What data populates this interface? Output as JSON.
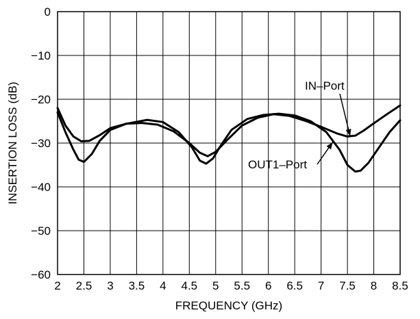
{
  "chart_data": {
    "type": "line",
    "xlabel": "FREQUENCY (GHz)",
    "ylabel": "INSERTION LOSS (dB)",
    "xlim": [
      2,
      8.5
    ],
    "ylim": [
      -60,
      0
    ],
    "xticks": [
      2,
      2.5,
      3,
      3.5,
      4,
      4.5,
      5,
      5.5,
      6,
      6.5,
      7,
      7.5,
      8,
      8.5
    ],
    "xtick_labels": [
      "2",
      "2.5",
      "3",
      "3.5",
      "4",
      "4.5",
      "5",
      "5.5",
      "6",
      "6.5",
      "7",
      "7.5",
      "8",
      "8.5"
    ],
    "yticks": [
      0,
      -10,
      -20,
      -30,
      -40,
      -50,
      -60
    ],
    "ytick_labels": [
      "0",
      "−10",
      "−20",
      "−30",
      "−40",
      "−50",
      "−60"
    ],
    "grid": true,
    "series": [
      {
        "name": "IN–Port",
        "x": [
          2.0,
          2.15,
          2.3,
          2.45,
          2.6,
          2.8,
          3.0,
          3.3,
          3.6,
          3.9,
          4.2,
          4.5,
          4.7,
          4.85,
          5.0,
          5.2,
          5.5,
          5.8,
          6.1,
          6.4,
          6.7,
          7.0,
          7.3,
          7.5,
          7.65,
          7.8,
          8.0,
          8.25,
          8.5
        ],
        "y": [
          -22,
          -26,
          -28.5,
          -29.6,
          -29.5,
          -28.2,
          -26.6,
          -25.6,
          -25.4,
          -25.8,
          -27.3,
          -30,
          -32.2,
          -33,
          -32,
          -29.5,
          -26,
          -24.2,
          -23.4,
          -23.8,
          -24.9,
          -26.3,
          -27.8,
          -28.5,
          -28.3,
          -27.2,
          -25.5,
          -23.4,
          -21.4
        ]
      },
      {
        "name": "OUT1–Port",
        "x": [
          2.0,
          2.15,
          2.3,
          2.4,
          2.5,
          2.65,
          2.8,
          3.0,
          3.3,
          3.7,
          4.0,
          4.3,
          4.55,
          4.7,
          4.82,
          4.95,
          5.1,
          5.3,
          5.6,
          5.9,
          6.2,
          6.5,
          6.8,
          7.1,
          7.35,
          7.5,
          7.65,
          7.75,
          7.9,
          8.1,
          8.3,
          8.5
        ],
        "y": [
          -23,
          -27.5,
          -31.5,
          -33.8,
          -34.3,
          -32.5,
          -29.5,
          -27,
          -25.6,
          -24.7,
          -25.2,
          -27.5,
          -31,
          -34,
          -34.7,
          -33.5,
          -30.5,
          -27,
          -24.5,
          -23.6,
          -23.3,
          -23.7,
          -25,
          -27.5,
          -31.5,
          -35,
          -36.5,
          -36.3,
          -34.5,
          -31,
          -27.5,
          -24.8
        ]
      }
    ],
    "annotations": [
      {
        "text": "IN–Port",
        "points_to_series": "IN–Port"
      },
      {
        "text": "OUT1–Port",
        "points_to_series": "OUT1–Port"
      }
    ]
  }
}
